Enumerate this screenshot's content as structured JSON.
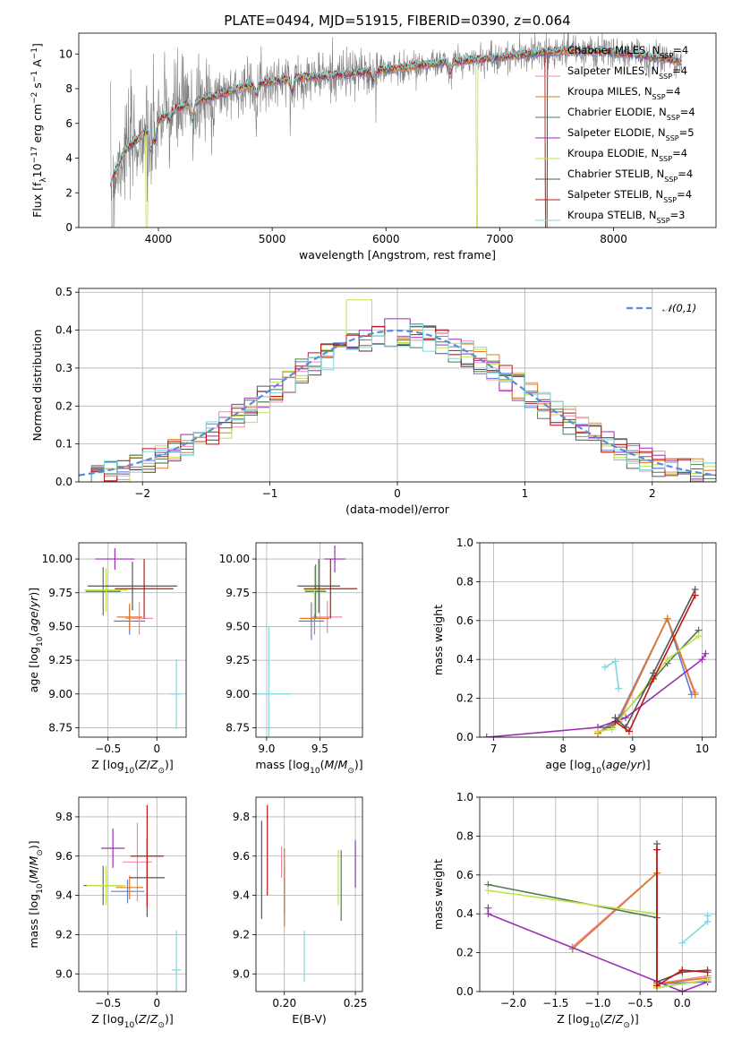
{
  "figure_title": "PLATE=0494, MJD=51915, FIBERID=0390, z=0.064",
  "colors": {
    "Chabrier MILES": "#5b7bd5",
    "Salpeter MILES": "#f08aa6",
    "Kroupa MILES": "#e07b1f",
    "Chabrier ELODIE": "#4f7a56",
    "Salpeter ELODIE": "#9a2fb0",
    "Kroupa ELODIE": "#c2e24a",
    "Chabrier STELIB": "#555555",
    "Salpeter STELIB": "#c01515",
    "Kroupa STELIB": "#7dd9dd",
    "data": "#808080",
    "normal": "#5b8dd6"
  },
  "chart_data": [
    {
      "id": "spectrum",
      "type": "line",
      "title": "PLATE=0494, MJD=51915, FIBERID=0390, z=0.064",
      "xlabel": "wavelength [Angstrom, rest frame]",
      "ylabel": "Flux [f_λ 10^-17 erg cm^-2 s^-1 A^-1]",
      "xlim": [
        3300,
        8900
      ],
      "ylim": [
        0,
        11.2
      ],
      "xticks": [
        4000,
        5000,
        6000,
        7000,
        8000
      ],
      "yticks": [
        0,
        2,
        4,
        6,
        8,
        10
      ],
      "grid": false,
      "legend_position": "right",
      "legend": [
        {
          "base": "Chabrier MILES, N",
          "sub": "SSP",
          "tail": "=4"
        },
        {
          "base": "Salpeter MILES, N",
          "sub": "SSP",
          "tail": "=4"
        },
        {
          "base": "Kroupa MILES, N",
          "sub": "SSP",
          "tail": "=4"
        },
        {
          "base": "Chabrier ELODIE, N",
          "sub": "SSP",
          "tail": "=4"
        },
        {
          "base": "Salpeter ELODIE, N",
          "sub": "SSP",
          "tail": "=5"
        },
        {
          "base": "Kroupa ELODIE, N",
          "sub": "SSP",
          "tail": "=4"
        },
        {
          "base": "Chabrier STELIB, N",
          "sub": "SSP",
          "tail": "=4"
        },
        {
          "base": "Salpeter STELIB, N",
          "sub": "SSP",
          "tail": "=4"
        },
        {
          "base": "Kroupa STELIB, N",
          "sub": "SSP",
          "tail": "=3"
        }
      ],
      "continuum": [
        [
          3580,
          2.6
        ],
        [
          3700,
          4.4
        ],
        [
          3900,
          5.6
        ],
        [
          4100,
          6.7
        ],
        [
          4400,
          7.4
        ],
        [
          4800,
          8.2
        ],
        [
          5200,
          8.6
        ],
        [
          5600,
          8.8
        ],
        [
          6000,
          9.1
        ],
        [
          6500,
          9.5
        ],
        [
          7000,
          9.8
        ],
        [
          7500,
          10.2
        ],
        [
          8000,
          10.1
        ],
        [
          8500,
          9.7
        ],
        [
          8600,
          9.5
        ]
      ]
    },
    {
      "id": "residuals",
      "type": "histogram",
      "xlabel": "(data-model)/error",
      "ylabel": "Normed distribution",
      "xlim": [
        -2.5,
        2.5
      ],
      "ylim": [
        0,
        0.51
      ],
      "xticks": [
        -2,
        -1,
        0,
        1,
        2
      ],
      "yticks": [
        0.0,
        0.1,
        0.2,
        0.3,
        0.4,
        0.5
      ],
      "grid": true,
      "legend_position": "top-right",
      "legend": [
        {
          "label": "𝒩(0,1)",
          "style": "dashed"
        }
      ],
      "bin_width": 0.1,
      "peaks": [
        {
          "x": -0.3,
          "y": 0.48
        },
        {
          "x": 0.0,
          "y": 0.43
        },
        {
          "x": 0.2,
          "y": 0.41
        }
      ]
    },
    {
      "id": "age_vs_Z",
      "type": "errorbar",
      "xlabel": "Z [log10(Z/Z⊙)]",
      "ylabel": "age [log10(age/yr)]",
      "xlim": [
        -0.8,
        0.3
      ],
      "ylim": [
        8.68,
        10.12
      ],
      "xticks": [
        -0.5,
        0.0
      ],
      "yticks": [
        8.75,
        9.0,
        9.25,
        9.5,
        9.75,
        10.0
      ],
      "points": [
        {
          "series": "Chabrier MILES",
          "x": -0.28,
          "xerr": 0.16,
          "y": 9.54,
          "yerr": 0.1
        },
        {
          "series": "Salpeter MILES",
          "x": -0.18,
          "xerr": 0.14,
          "y": 9.56,
          "yerr": 0.12
        },
        {
          "series": "Kroupa MILES",
          "x": -0.28,
          "xerr": 0.13,
          "y": 9.57,
          "yerr": 0.1
        },
        {
          "series": "Chabrier ELODIE",
          "x": -0.55,
          "xerr": 0.18,
          "y": 9.76,
          "yerr": 0.18
        },
        {
          "series": "Salpeter ELODIE",
          "x": -0.43,
          "xerr": 0.2,
          "y": 10.0,
          "yerr": 0.08
        },
        {
          "series": "Kroupa ELODIE",
          "x": -0.52,
          "xerr": 0.22,
          "y": 9.77,
          "yerr": 0.16
        },
        {
          "series": "Chabrier STELIB",
          "x": -0.25,
          "xerr": 0.46,
          "y": 9.8,
          "yerr": 0.18
        },
        {
          "series": "Salpeter STELIB",
          "x": -0.13,
          "xerr": 0.3,
          "y": 9.78,
          "yerr": 0.22
        },
        {
          "series": "Kroupa STELIB",
          "x": 0.2,
          "xerr": 0.06,
          "y": 9.0,
          "yerr": 0.26
        }
      ]
    },
    {
      "id": "age_vs_mass",
      "type": "errorbar",
      "xlabel": "mass [log10(M/M⊙)]",
      "ylabel": "",
      "xlim": [
        8.9,
        9.9
      ],
      "ylim": [
        8.68,
        10.12
      ],
      "xticks": [
        9.0,
        9.5
      ],
      "yticks": [
        8.75,
        9.0,
        9.25,
        9.5,
        9.75,
        10.0
      ],
      "points": [
        {
          "series": "Chabrier MILES",
          "x": 9.42,
          "xerr": 0.12,
          "y": 9.54,
          "yerr": 0.14
        },
        {
          "series": "Salpeter MILES",
          "x": 9.57,
          "xerr": 0.14,
          "y": 9.57,
          "yerr": 0.12
        },
        {
          "series": "Kroupa MILES",
          "x": 9.45,
          "xerr": 0.14,
          "y": 9.56,
          "yerr": 0.12
        },
        {
          "series": "Chabrier ELODIE",
          "x": 9.46,
          "xerr": 0.1,
          "y": 9.76,
          "yerr": 0.2
        },
        {
          "series": "Salpeter ELODIE",
          "x": 9.64,
          "xerr": 0.1,
          "y": 10.0,
          "yerr": 0.1
        },
        {
          "series": "Kroupa ELODIE",
          "x": 9.45,
          "xerr": 0.1,
          "y": 9.77,
          "yerr": 0.18
        },
        {
          "series": "Chabrier STELIB",
          "x": 9.49,
          "xerr": 0.2,
          "y": 9.8,
          "yerr": 0.2
        },
        {
          "series": "Salpeter STELIB",
          "x": 9.6,
          "xerr": 0.25,
          "y": 9.78,
          "yerr": 0.22
        },
        {
          "series": "Kroupa STELIB",
          "x": 9.02,
          "xerr": 0.2,
          "y": 9.0,
          "yerr": 0.5
        }
      ]
    },
    {
      "id": "weight_vs_age",
      "type": "line",
      "xlabel": "age [log10(age/yr)]",
      "ylabel": "mass weight",
      "xlim": [
        6.8,
        10.2
      ],
      "ylim": [
        0,
        1.0
      ],
      "xticks": [
        7,
        8,
        9,
        10
      ],
      "yticks": [
        0.0,
        0.2,
        0.4,
        0.6,
        0.8,
        1.0
      ],
      "grid": true,
      "series": [
        {
          "name": "Chabrier MILES",
          "points": [
            [
              8.5,
              0.02
            ],
            [
              8.8,
              0.1
            ],
            [
              9.5,
              0.61
            ],
            [
              9.85,
              0.22
            ]
          ]
        },
        {
          "name": "Salpeter MILES",
          "points": [
            [
              8.5,
              0.02
            ],
            [
              8.8,
              0.08
            ],
            [
              9.5,
              0.61
            ],
            [
              9.9,
              0.23
            ]
          ]
        },
        {
          "name": "Kroupa MILES",
          "points": [
            [
              8.5,
              0.02
            ],
            [
              8.8,
              0.09
            ],
            [
              9.5,
              0.61
            ],
            [
              9.9,
              0.22
            ]
          ]
        },
        {
          "name": "Chabrier ELODIE",
          "points": [
            [
              8.5,
              0.05
            ],
            [
              8.7,
              0.05
            ],
            [
              9.5,
              0.38
            ],
            [
              9.95,
              0.55
            ]
          ]
        },
        {
          "name": "Salpeter ELODIE",
          "points": [
            [
              6.9,
              0.0
            ],
            [
              8.5,
              0.05
            ],
            [
              8.9,
              0.1
            ],
            [
              10.0,
              0.4
            ],
            [
              10.05,
              0.43
            ]
          ]
        },
        {
          "name": "Kroupa ELODIE",
          "points": [
            [
              8.5,
              0.03
            ],
            [
              8.7,
              0.04
            ],
            [
              9.5,
              0.4
            ],
            [
              9.95,
              0.52
            ]
          ]
        },
        {
          "name": "Chabrier STELIB",
          "points": [
            [
              8.75,
              0.1
            ],
            [
              8.9,
              0.05
            ],
            [
              9.3,
              0.33
            ],
            [
              9.9,
              0.76
            ]
          ]
        },
        {
          "name": "Salpeter STELIB",
          "points": [
            [
              8.75,
              0.08
            ],
            [
              8.95,
              0.03
            ],
            [
              9.3,
              0.3
            ],
            [
              9.9,
              0.73
            ]
          ]
        },
        {
          "name": "Kroupa STELIB",
          "points": [
            [
              8.6,
              0.36
            ],
            [
              8.75,
              0.39
            ],
            [
              8.8,
              0.25
            ]
          ]
        }
      ]
    },
    {
      "id": "mass_vs_Z",
      "type": "errorbar",
      "xlabel": "Z [log10(Z/Z⊙)]",
      "ylabel": "mass [log10(M/M⊙)]",
      "xlim": [
        -0.8,
        0.3
      ],
      "ylim": [
        8.91,
        9.9
      ],
      "xticks": [
        -0.5,
        0.0
      ],
      "yticks": [
        9.0,
        9.2,
        9.4,
        9.6,
        9.8
      ],
      "points": [
        {
          "series": "Chabrier MILES",
          "x": -0.3,
          "xerr": 0.17,
          "y": 9.42,
          "yerr": 0.06
        },
        {
          "series": "Salpeter MILES",
          "x": -0.2,
          "xerr": 0.15,
          "y": 9.57,
          "yerr": 0.2
        },
        {
          "series": "Kroupa MILES",
          "x": -0.28,
          "xerr": 0.14,
          "y": 9.44,
          "yerr": 0.06
        },
        {
          "series": "Chabrier ELODIE",
          "x": -0.55,
          "xerr": 0.2,
          "y": 9.45,
          "yerr": 0.1
        },
        {
          "series": "Salpeter ELODIE",
          "x": -0.45,
          "xerr": 0.12,
          "y": 9.64,
          "yerr": 0.1
        },
        {
          "series": "Kroupa ELODIE",
          "x": -0.52,
          "xerr": 0.2,
          "y": 9.45,
          "yerr": 0.1
        },
        {
          "series": "Chabrier STELIB",
          "x": -0.1,
          "xerr": 0.18,
          "y": 9.49,
          "yerr": 0.2
        },
        {
          "series": "Salpeter STELIB",
          "x": -0.1,
          "xerr": 0.17,
          "y": 9.6,
          "yerr": 0.26
        },
        {
          "series": "Kroupa STELIB",
          "x": 0.2,
          "xerr": 0.05,
          "y": 9.02,
          "yerr": 0.2
        }
      ]
    },
    {
      "id": "mass_vs_EBV",
      "type": "errorbar",
      "xlabel": "E(B-V)",
      "ylabel": "",
      "xlim": [
        0.18,
        0.255
      ],
      "ylim": [
        8.91,
        9.9
      ],
      "xticks": [
        0.2,
        0.25
      ],
      "yticks": [
        9.0,
        9.2,
        9.4,
        9.6,
        9.8
      ],
      "points": [
        {
          "series": "Chabrier MILES",
          "x": 0.2,
          "xerr": 0,
          "y": 9.42,
          "yerr": 0.12
        },
        {
          "series": "Salpeter MILES",
          "x": 0.198,
          "xerr": 0,
          "y": 9.57,
          "yerr": 0.08
        },
        {
          "series": "Kroupa MILES",
          "x": 0.2,
          "xerr": 0,
          "y": 9.44,
          "yerr": 0.2
        },
        {
          "series": "Chabrier ELODIE",
          "x": 0.24,
          "xerr": 0,
          "y": 9.45,
          "yerr": 0.18
        },
        {
          "series": "Salpeter ELODIE",
          "x": 0.25,
          "xerr": 0,
          "y": 9.56,
          "yerr": 0.12
        },
        {
          "series": "Kroupa ELODIE",
          "x": 0.238,
          "xerr": 0,
          "y": 9.49,
          "yerr": 0.14
        },
        {
          "series": "Chabrier STELIB",
          "x": 0.184,
          "xerr": 0,
          "y": 9.53,
          "yerr": 0.25
        },
        {
          "series": "Salpeter STELIB",
          "x": 0.188,
          "xerr": 0,
          "y": 9.63,
          "yerr": 0.23
        },
        {
          "series": "Kroupa STELIB",
          "x": 0.214,
          "xerr": 0,
          "y": 9.09,
          "yerr": 0.13
        }
      ]
    },
    {
      "id": "weight_vs_Z",
      "type": "line",
      "xlabel": "Z [log10(Z/Z⊙)]",
      "ylabel": "mass weight",
      "xlim": [
        -2.4,
        0.4
      ],
      "ylim": [
        0,
        1.0
      ],
      "xticks": [
        -2.0,
        -1.5,
        -1.0,
        -0.5,
        0.0
      ],
      "yticks": [
        0.0,
        0.2,
        0.4,
        0.6,
        0.8,
        1.0
      ],
      "grid": true,
      "series": [
        {
          "name": "Chabrier MILES",
          "points": [
            [
              -1.3,
              0.22
            ],
            [
              -0.3,
              0.61
            ],
            [
              -0.3,
              0.04
            ],
            [
              0.3,
              0.05
            ]
          ]
        },
        {
          "name": "Salpeter MILES",
          "points": [
            [
              -1.3,
              0.23
            ],
            [
              -0.3,
              0.61
            ],
            [
              -0.3,
              0.04
            ],
            [
              0.3,
              0.08
            ]
          ]
        },
        {
          "name": "Kroupa MILES",
          "points": [
            [
              -1.3,
              0.22
            ],
            [
              -0.3,
              0.61
            ],
            [
              -0.3,
              0.04
            ],
            [
              0.3,
              0.07
            ]
          ]
        },
        {
          "name": "Chabrier ELODIE",
          "points": [
            [
              -2.3,
              0.55
            ],
            [
              -0.3,
              0.38
            ],
            [
              -0.3,
              0.02
            ],
            [
              0.3,
              0.06
            ]
          ]
        },
        {
          "name": "Salpeter ELODIE",
          "points": [
            [
              -2.3,
              0.43
            ],
            [
              -2.3,
              0.4
            ],
            [
              0.0,
              0.0
            ],
            [
              0.3,
              0.05
            ]
          ]
        },
        {
          "name": "Kroupa ELODIE",
          "points": [
            [
              -2.3,
              0.52
            ],
            [
              -0.3,
              0.4
            ],
            [
              -0.3,
              0.02
            ],
            [
              0.3,
              0.06
            ]
          ]
        },
        {
          "name": "Chabrier STELIB",
          "points": [
            [
              -0.3,
              0.76
            ],
            [
              -0.3,
              0.05
            ],
            [
              0.0,
              0.1
            ],
            [
              0.3,
              0.11
            ]
          ]
        },
        {
          "name": "Salpeter STELIB",
          "points": [
            [
              -0.3,
              0.73
            ],
            [
              -0.3,
              0.03
            ],
            [
              0.0,
              0.11
            ],
            [
              0.3,
              0.1
            ]
          ]
        },
        {
          "name": "Kroupa STELIB",
          "points": [
            [
              0.0,
              0.25
            ],
            [
              0.3,
              0.36
            ],
            [
              0.3,
              0.39
            ]
          ]
        }
      ]
    }
  ]
}
